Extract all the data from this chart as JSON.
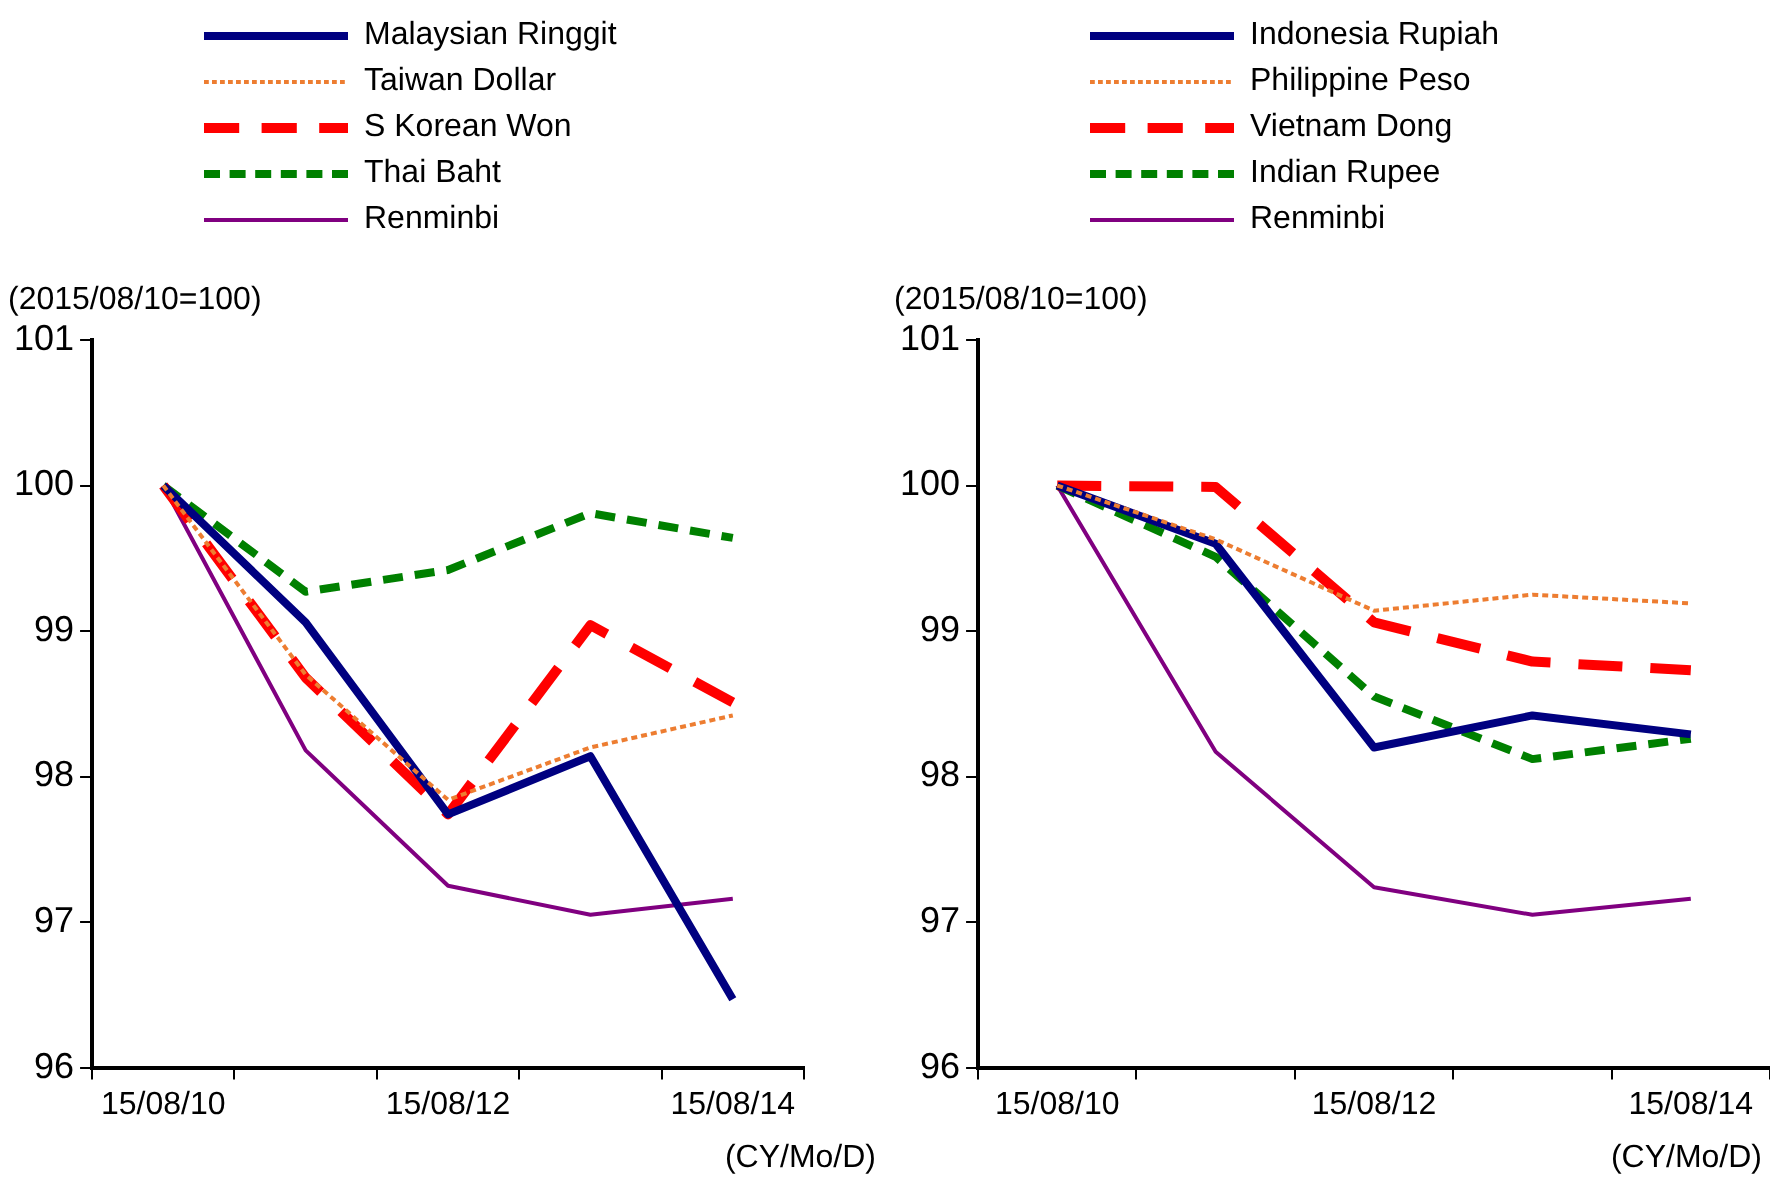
{
  "chart_data": [
    {
      "type": "line",
      "ylabel": "(2015/08/10=100)",
      "xlabel": "(CY/Mo/D)",
      "categories": [
        "15/08/10",
        null,
        "15/08/12",
        null,
        "15/08/14"
      ],
      "ylim": [
        96,
        101
      ],
      "yticks": [
        96,
        97,
        98,
        99,
        100,
        101
      ],
      "grid": false,
      "legend": "top",
      "marker": "none",
      "series": [
        {
          "name": "Malaysian Ringgit",
          "color": "#000080",
          "line_style": "solid",
          "values": [
            100,
            99.06,
            97.74,
            98.14,
            96.47
          ]
        },
        {
          "name": "Taiwan Dollar",
          "color": "#ed7d31",
          "line_style": "dotted",
          "values": [
            100,
            98.7,
            97.84,
            98.2,
            98.42
          ]
        },
        {
          "name": "S Korean Won",
          "color": "#ff0000",
          "line_style": "dashed",
          "values": [
            100,
            98.68,
            97.74,
            99.04,
            98.51
          ]
        },
        {
          "name": "Thai Baht",
          "color": "#008000",
          "line_style": "dashed",
          "values": [
            100,
            99.27,
            99.42,
            99.81,
            99.64
          ]
        },
        {
          "name": "Renminbi",
          "color": "#800080",
          "line_style": "solid",
          "values": [
            100,
            98.18,
            97.25,
            97.05,
            97.16
          ]
        }
      ]
    },
    {
      "type": "line",
      "ylabel": "(2015/08/10=100)",
      "xlabel": "(CY/Mo/D)",
      "categories": [
        "15/08/10",
        null,
        "15/08/12",
        null,
        "15/08/14"
      ],
      "ylim": [
        96,
        101
      ],
      "yticks": [
        96,
        97,
        98,
        99,
        100,
        101
      ],
      "grid": false,
      "legend": "top",
      "marker": "none",
      "series": [
        {
          "name": "Indonesia Rupiah",
          "color": "#000080",
          "line_style": "solid",
          "values": [
            100,
            99.6,
            98.2,
            98.42,
            98.29
          ]
        },
        {
          "name": "Philippine Peso",
          "color": "#ed7d31",
          "line_style": "dotted",
          "values": [
            100,
            99.63,
            99.14,
            99.25,
            99.19
          ]
        },
        {
          "name": "Vietnam Dong",
          "color": "#ff0000",
          "line_style": "dashed",
          "values": [
            100,
            99.99,
            99.06,
            98.79,
            98.73
          ]
        },
        {
          "name": "Indian Rupee",
          "color": "#008000",
          "line_style": "dashed",
          "values": [
            100,
            99.51,
            98.55,
            98.12,
            98.26
          ]
        },
        {
          "name": "Renminbi",
          "color": "#800080",
          "line_style": "solid",
          "values": [
            100,
            98.17,
            97.24,
            97.05,
            97.16
          ]
        }
      ]
    }
  ]
}
